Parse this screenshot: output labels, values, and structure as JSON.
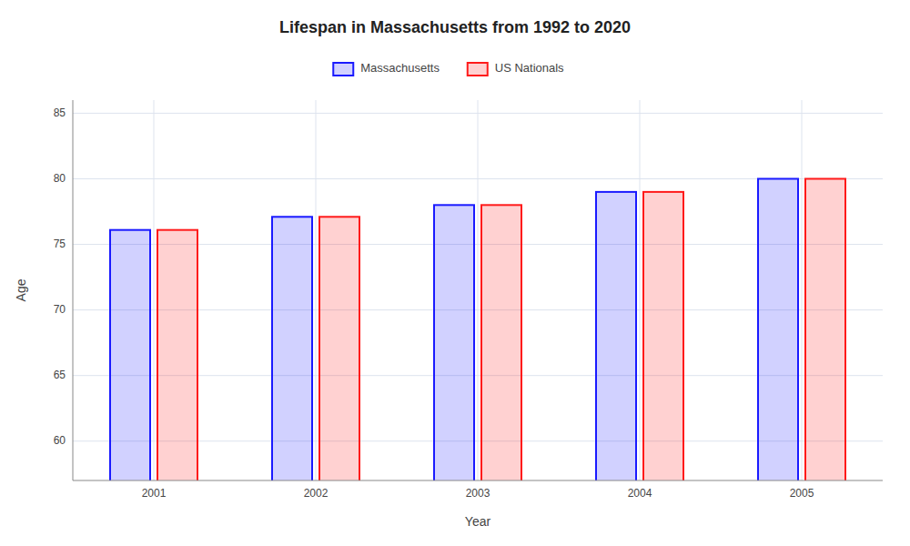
{
  "chart_data": {
    "type": "bar",
    "title": "Lifespan in Massachusetts from 1992 to 2020",
    "x_label": "Year",
    "y_label": "Age",
    "categories": [
      "2001",
      "2002",
      "2003",
      "2004",
      "2005"
    ],
    "series": [
      {
        "name": "Massachusetts",
        "color": "#1a1aff",
        "values": [
          76.1,
          77.1,
          78.0,
          79.0,
          80.0
        ]
      },
      {
        "name": "US Nationals",
        "color": "#ff1a1a",
        "values": [
          76.1,
          77.1,
          78.0,
          79.0,
          80.0
        ]
      }
    ],
    "ylim": [
      57,
      86
    ],
    "yticks": [
      60,
      65,
      70,
      75,
      80,
      85
    ],
    "grid": true,
    "legend": "top"
  }
}
